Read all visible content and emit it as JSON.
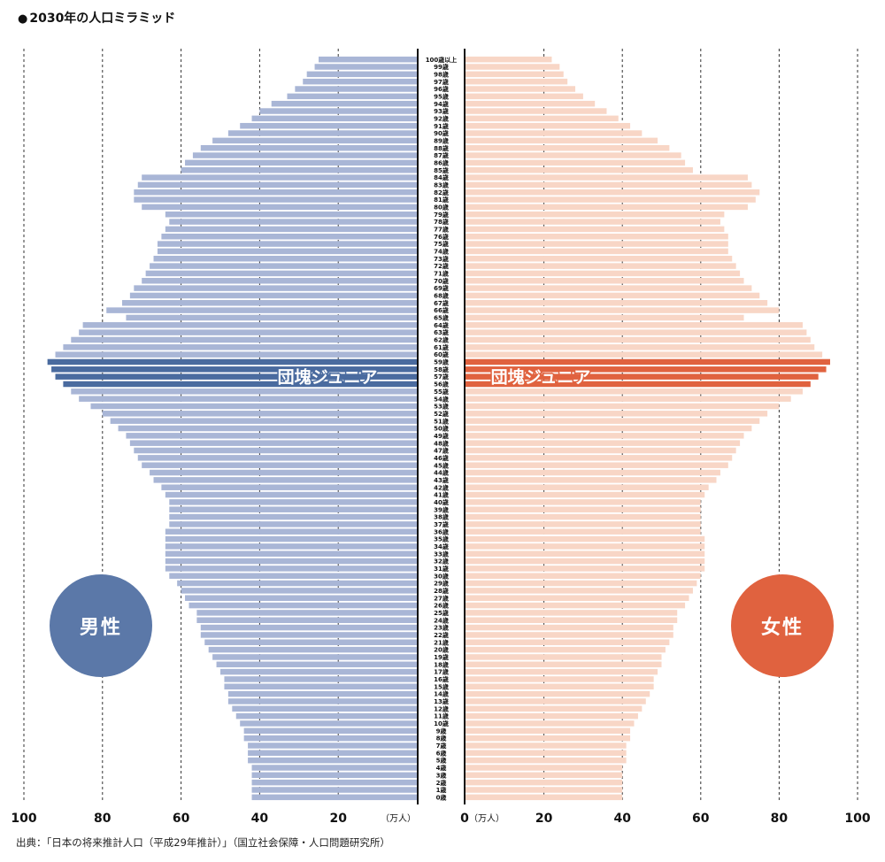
{
  "title": "2030年の人口ミラミッド",
  "source": "出典：「日本の将来推計人口（平成29年推計）」（国立社会保障・人口問題研究所）",
  "labels": {
    "male": "男性",
    "female": "女性",
    "highlight": "団塊ジュニア",
    "unit_left": "（万人）",
    "unit_right": "（万人）"
  },
  "colors": {
    "male_bar": "#a9b6d6",
    "male_highlight": "#4a6b9f",
    "female_bar": "#f8d6c6",
    "female_highlight": "#e0623f",
    "male_circle": "#5b78a8",
    "female_circle": "#e0623f"
  },
  "chart_data": {
    "type": "bar",
    "orientation": "horizontal-mirrored",
    "title": "2030年の人口ミラミッド",
    "xlim": [
      0,
      100
    ],
    "x_ticks": [
      0,
      20,
      40,
      60,
      80,
      100
    ],
    "x_tick_labels": [
      "0",
      "20",
      "40",
      "60",
      "80",
      "100"
    ],
    "xlabel": "（万人）",
    "grid": true,
    "highlight_ages": [
      56,
      57,
      58,
      59
    ],
    "highlight_label": "団塊ジュニア",
    "categories": [
      "0歳",
      "1歳",
      "2歳",
      "3歳",
      "4歳",
      "5歳",
      "6歳",
      "7歳",
      "8歳",
      "9歳",
      "10歳",
      "11歳",
      "12歳",
      "13歳",
      "14歳",
      "15歳",
      "16歳",
      "17歳",
      "18歳",
      "19歳",
      "20歳",
      "21歳",
      "22歳",
      "23歳",
      "24歳",
      "25歳",
      "26歳",
      "27歳",
      "28歳",
      "29歳",
      "30歳",
      "31歳",
      "32歳",
      "33歳",
      "34歳",
      "35歳",
      "36歳",
      "37歳",
      "38歳",
      "39歳",
      "40歳",
      "41歳",
      "42歳",
      "43歳",
      "44歳",
      "45歳",
      "46歳",
      "47歳",
      "48歳",
      "49歳",
      "50歳",
      "51歳",
      "52歳",
      "53歳",
      "54歳",
      "55歳",
      "56歳",
      "57歳",
      "58歳",
      "59歳",
      "60歳",
      "61歳",
      "62歳",
      "63歳",
      "64歳",
      "65歳",
      "66歳",
      "67歳",
      "68歳",
      "69歳",
      "70歳",
      "71歳",
      "72歳",
      "73歳",
      "74歳",
      "75歳",
      "76歳",
      "77歳",
      "78歳",
      "79歳",
      "80歳",
      "81歳",
      "82歳",
      "83歳",
      "84歳",
      "85歳",
      "86歳",
      "87歳",
      "88歳",
      "89歳",
      "90歳",
      "91歳",
      "92歳",
      "93歳",
      "94歳",
      "95歳",
      "96歳",
      "97歳",
      "98歳",
      "99歳",
      "100歳以上"
    ],
    "series": [
      {
        "name": "男性",
        "values": [
          42,
          42,
          42,
          42,
          42,
          43,
          43,
          43,
          44,
          44,
          45,
          46,
          47,
          48,
          48,
          49,
          49,
          50,
          51,
          52,
          53,
          54,
          55,
          55,
          56,
          56,
          58,
          59,
          60,
          61,
          63,
          64,
          64,
          64,
          64,
          64,
          64,
          63,
          63,
          63,
          63,
          64,
          65,
          67,
          68,
          70,
          71,
          72,
          73,
          74,
          76,
          78,
          80,
          83,
          86,
          88,
          90,
          92,
          93,
          94,
          92,
          90,
          88,
          86,
          85,
          74,
          79,
          75,
          73,
          72,
          70,
          69,
          68,
          67,
          66,
          66,
          65,
          64,
          63,
          64,
          70,
          72,
          72,
          71,
          70,
          60,
          59,
          57,
          55,
          52,
          48,
          45,
          42,
          40,
          37,
          33,
          31,
          29,
          28,
          26,
          25
        ]
      },
      {
        "name": "女性",
        "values": [
          40,
          40,
          40,
          40,
          40,
          41,
          41,
          41,
          42,
          42,
          43,
          44,
          45,
          46,
          47,
          48,
          48,
          49,
          50,
          50,
          51,
          52,
          53,
          53,
          54,
          54,
          56,
          57,
          58,
          59,
          60,
          61,
          61,
          61,
          61,
          61,
          60,
          60,
          60,
          60,
          60,
          61,
          62,
          64,
          65,
          67,
          68,
          69,
          70,
          71,
          73,
          75,
          77,
          80,
          83,
          86,
          88,
          90,
          92,
          93,
          91,
          89,
          88,
          87,
          86,
          71,
          80,
          77,
          75,
          73,
          71,
          70,
          69,
          68,
          67,
          67,
          67,
          66,
          65,
          66,
          72,
          74,
          75,
          73,
          72,
          58,
          56,
          55,
          52,
          49,
          45,
          42,
          39,
          36,
          33,
          30,
          28,
          26,
          25,
          24,
          22
        ]
      }
    ]
  }
}
